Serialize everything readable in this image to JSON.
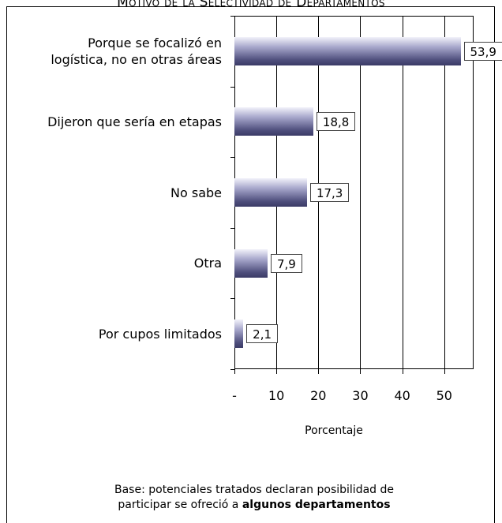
{
  "chart_data": {
    "type": "bar",
    "orientation": "horizontal",
    "title": "Motivo de la Selectividad de Departamentos",
    "categories": [
      "Porque se focalizó en\nlogística, no en otras áreas",
      "Dijeron que sería en etapas",
      "No sabe",
      "Otra",
      "Por cupos limitados"
    ],
    "values": [
      53.9,
      18.8,
      17.3,
      7.9,
      2.1
    ],
    "value_labels": [
      "53,9",
      "18,8",
      "17,3",
      "7,9",
      "2,1"
    ],
    "color": "#50507e",
    "xlim": [
      0,
      57
    ],
    "xticks": [
      {
        "value": 0,
        "label": "-"
      },
      10,
      20,
      30,
      40,
      50
    ],
    "grid": true,
    "x_label": "Porcentaje",
    "footnote": "Base: potenciales tratados declaran posibilidad de\nparticipar se ofreció a ",
    "footnote_bold": "algunos departamentos"
  }
}
